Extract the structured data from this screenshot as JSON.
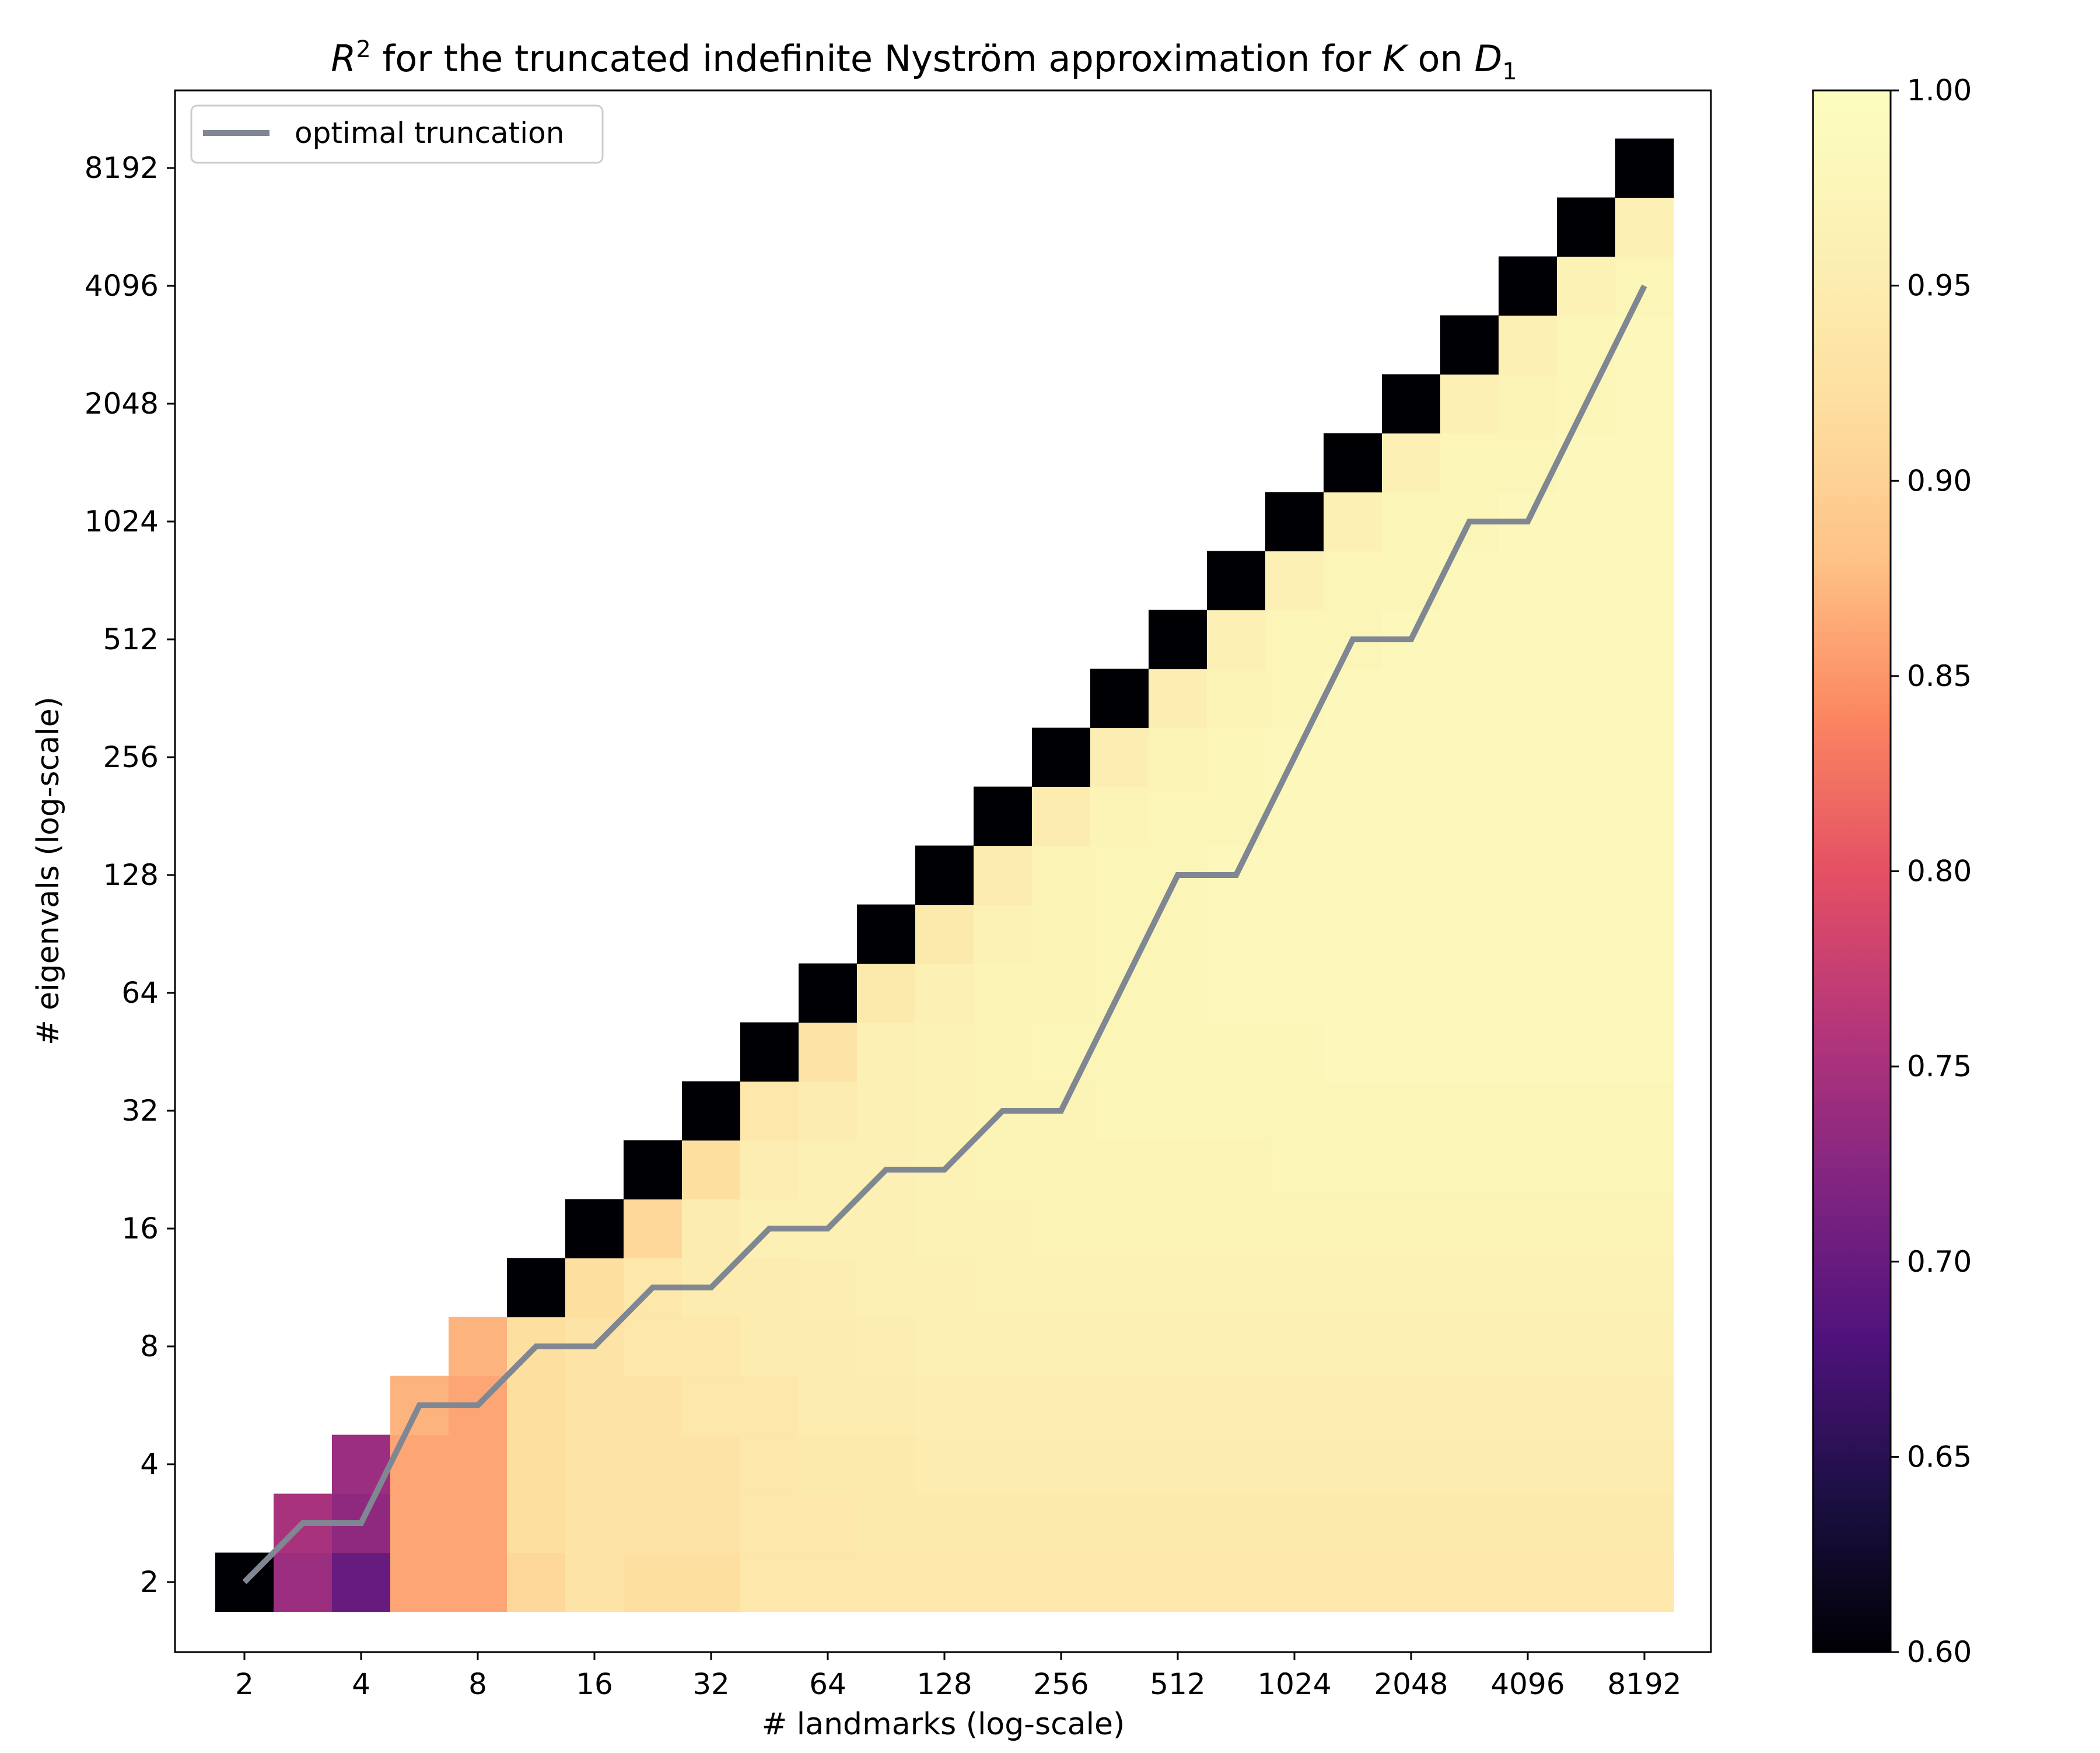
{
  "chart_data": {
    "type": "heatmap",
    "title": {
      "r_label": "R",
      "r_exponent": "2",
      "part1": " for the truncated indefinite Nyström approximation for ",
      "k_label": "K",
      "part2": " on ",
      "d_label": "D",
      "d_subscript": "1"
    },
    "xlabel": "# landmarks (log-scale)",
    "ylabel": "# eigenvals (log-scale)",
    "x_tick_labels": [
      "2",
      "4",
      "8",
      "16",
      "32",
      "64",
      "128",
      "256",
      "512",
      "1024",
      "2048",
      "4096",
      "8192"
    ],
    "y_tick_labels": [
      "2",
      "4",
      "8",
      "16",
      "32",
      "64",
      "128",
      "256",
      "512",
      "1024",
      "2048",
      "4096",
      "8192"
    ],
    "x_scale": "log2",
    "y_scale": "log2",
    "x_range_log2": [
      1,
      13
    ],
    "y_range_log2": [
      1,
      13
    ],
    "grid_resolution_log2": 0.5,
    "legend": {
      "position": "top-left",
      "entries": [
        "optimal truncation"
      ]
    },
    "colorbar": {
      "colormap": "magma",
      "range": [
        0.6,
        1.0
      ],
      "tick_labels": [
        "0.60",
        "0.65",
        "0.70",
        "0.75",
        "0.80",
        "0.85",
        "0.90",
        "0.95",
        "1.00"
      ]
    },
    "line_color": "#7f8793",
    "heatmap_rows": [
      {
        "y_log2": 1.0,
        "values": [
          0.6,
          0.74,
          0.7,
          0.86,
          0.86,
          0.91,
          0.93,
          0.92,
          0.92,
          0.94,
          0.94,
          0.94,
          0.94,
          0.94,
          0.94,
          0.94,
          0.94,
          0.94,
          0.94,
          0.94,
          0.94,
          0.94,
          0.94,
          0.94,
          0.94
        ]
      },
      {
        "y_log2": 1.5,
        "values": [
          null,
          0.75,
          0.73,
          0.86,
          0.86,
          0.92,
          0.93,
          0.93,
          0.93,
          0.94,
          0.94,
          0.945,
          0.945,
          0.945,
          0.945,
          0.945,
          0.945,
          0.945,
          0.945,
          0.945,
          0.945,
          0.945,
          0.945,
          0.945,
          0.945
        ]
      },
      {
        "y_log2": 2.0,
        "values": [
          null,
          null,
          0.74,
          0.86,
          0.86,
          0.92,
          0.93,
          0.93,
          0.93,
          0.94,
          0.945,
          0.945,
          0.95,
          0.95,
          0.95,
          0.95,
          0.95,
          0.95,
          0.95,
          0.95,
          0.95,
          0.95,
          0.95,
          0.95,
          0.95
        ]
      },
      {
        "y_log2": 2.5,
        "values": [
          null,
          null,
          null,
          0.87,
          0.86,
          0.92,
          0.93,
          0.93,
          0.94,
          0.94,
          0.95,
          0.95,
          0.955,
          0.955,
          0.955,
          0.955,
          0.955,
          0.955,
          0.955,
          0.955,
          0.955,
          0.955,
          0.955,
          0.955,
          0.955
        ]
      },
      {
        "y_log2": 3.0,
        "values": [
          null,
          null,
          null,
          null,
          0.87,
          0.92,
          0.93,
          0.94,
          0.94,
          0.95,
          0.95,
          0.955,
          0.96,
          0.96,
          0.96,
          0.96,
          0.96,
          0.96,
          0.96,
          0.96,
          0.96,
          0.96,
          0.96,
          0.96,
          0.96
        ]
      },
      {
        "y_log2": 3.5,
        "values": [
          null,
          null,
          null,
          null,
          null,
          0.6,
          0.92,
          0.94,
          0.95,
          0.95,
          0.955,
          0.96,
          0.96,
          0.965,
          0.965,
          0.965,
          0.965,
          0.965,
          0.965,
          0.965,
          0.965,
          0.965,
          0.965,
          0.965,
          0.965
        ]
      },
      {
        "y_log2": 4.0,
        "values": [
          null,
          null,
          null,
          null,
          null,
          null,
          0.6,
          0.91,
          0.95,
          0.96,
          0.96,
          0.96,
          0.965,
          0.965,
          0.97,
          0.97,
          0.97,
          0.97,
          0.97,
          0.97,
          0.97,
          0.97,
          0.97,
          0.97,
          0.97
        ]
      },
      {
        "y_log2": 4.5,
        "values": [
          null,
          null,
          null,
          null,
          null,
          null,
          null,
          0.6,
          0.92,
          0.955,
          0.96,
          0.96,
          0.965,
          0.97,
          0.97,
          0.97,
          0.97,
          0.97,
          0.975,
          0.975,
          0.975,
          0.975,
          0.975,
          0.975,
          0.975
        ]
      },
      {
        "y_log2": 5.0,
        "values": [
          null,
          null,
          null,
          null,
          null,
          null,
          null,
          null,
          0.6,
          0.94,
          0.95,
          0.96,
          0.965,
          0.97,
          0.97,
          0.975,
          0.975,
          0.975,
          0.975,
          0.975,
          0.975,
          0.975,
          0.975,
          0.975,
          0.975
        ]
      },
      {
        "y_log2": 5.5,
        "values": [
          null,
          null,
          null,
          null,
          null,
          null,
          null,
          null,
          null,
          0.6,
          0.93,
          0.96,
          0.965,
          0.97,
          0.975,
          0.975,
          0.975,
          0.975,
          0.975,
          0.98,
          0.98,
          0.98,
          0.98,
          0.98,
          0.98
        ]
      },
      {
        "y_log2": 6.0,
        "values": [
          null,
          null,
          null,
          null,
          null,
          null,
          null,
          null,
          null,
          null,
          0.6,
          0.945,
          0.96,
          0.97,
          0.97,
          0.975,
          0.975,
          0.98,
          0.98,
          0.98,
          0.98,
          0.98,
          0.98,
          0.98,
          0.98
        ]
      },
      {
        "y_log2": 6.5,
        "values": [
          null,
          null,
          null,
          null,
          null,
          null,
          null,
          null,
          null,
          null,
          null,
          0.6,
          0.945,
          0.965,
          0.97,
          0.975,
          0.975,
          0.98,
          0.98,
          0.98,
          0.98,
          0.98,
          0.98,
          0.98,
          0.98
        ]
      },
      {
        "y_log2": 7.0,
        "values": [
          null,
          null,
          null,
          null,
          null,
          null,
          null,
          null,
          null,
          null,
          null,
          null,
          0.6,
          0.95,
          0.97,
          0.975,
          0.975,
          0.98,
          0.98,
          0.98,
          0.98,
          0.98,
          0.98,
          0.98,
          0.98
        ]
      },
      {
        "y_log2": 7.5,
        "values": [
          null,
          null,
          null,
          null,
          null,
          null,
          null,
          null,
          null,
          null,
          null,
          null,
          null,
          0.6,
          0.95,
          0.97,
          0.975,
          0.975,
          0.98,
          0.98,
          0.98,
          0.98,
          0.98,
          0.98,
          0.98
        ]
      },
      {
        "y_log2": 8.0,
        "values": [
          null,
          null,
          null,
          null,
          null,
          null,
          null,
          null,
          null,
          null,
          null,
          null,
          null,
          null,
          0.6,
          0.955,
          0.97,
          0.975,
          0.98,
          0.98,
          0.98,
          0.98,
          0.98,
          0.98,
          0.98
        ]
      },
      {
        "y_log2": 8.5,
        "values": [
          null,
          null,
          null,
          null,
          null,
          null,
          null,
          null,
          null,
          null,
          null,
          null,
          null,
          null,
          null,
          0.6,
          0.955,
          0.97,
          0.975,
          0.98,
          0.98,
          0.98,
          0.98,
          0.98,
          0.98
        ]
      },
      {
        "y_log2": 9.0,
        "values": [
          null,
          null,
          null,
          null,
          null,
          null,
          null,
          null,
          null,
          null,
          null,
          null,
          null,
          null,
          null,
          null,
          0.6,
          0.96,
          0.975,
          0.975,
          0.98,
          0.98,
          0.98,
          0.98,
          0.98
        ]
      },
      {
        "y_log2": 9.5,
        "values": [
          null,
          null,
          null,
          null,
          null,
          null,
          null,
          null,
          null,
          null,
          null,
          null,
          null,
          null,
          null,
          null,
          null,
          0.6,
          0.96,
          0.975,
          0.975,
          0.98,
          0.98,
          0.98,
          0.98
        ]
      },
      {
        "y_log2": 10.0,
        "values": [
          null,
          null,
          null,
          null,
          null,
          null,
          null,
          null,
          null,
          null,
          null,
          null,
          null,
          null,
          null,
          null,
          null,
          null,
          0.6,
          0.96,
          0.975,
          0.975,
          0.98,
          0.98,
          0.98
        ]
      },
      {
        "y_log2": 10.5,
        "values": [
          null,
          null,
          null,
          null,
          null,
          null,
          null,
          null,
          null,
          null,
          null,
          null,
          null,
          null,
          null,
          null,
          null,
          null,
          null,
          0.6,
          0.96,
          0.975,
          0.975,
          0.98,
          0.98
        ]
      },
      {
        "y_log2": 11.0,
        "values": [
          null,
          null,
          null,
          null,
          null,
          null,
          null,
          null,
          null,
          null,
          null,
          null,
          null,
          null,
          null,
          null,
          null,
          null,
          null,
          null,
          0.6,
          0.96,
          0.97,
          0.975,
          0.98
        ]
      },
      {
        "y_log2": 11.5,
        "values": [
          null,
          null,
          null,
          null,
          null,
          null,
          null,
          null,
          null,
          null,
          null,
          null,
          null,
          null,
          null,
          null,
          null,
          null,
          null,
          null,
          null,
          0.6,
          0.96,
          0.975,
          0.98
        ]
      },
      {
        "y_log2": 12.0,
        "values": [
          null,
          null,
          null,
          null,
          null,
          null,
          null,
          null,
          null,
          null,
          null,
          null,
          null,
          null,
          null,
          null,
          null,
          null,
          null,
          null,
          null,
          null,
          0.6,
          0.965,
          0.975
        ]
      },
      {
        "y_log2": 12.5,
        "values": [
          null,
          null,
          null,
          null,
          null,
          null,
          null,
          null,
          null,
          null,
          null,
          null,
          null,
          null,
          null,
          null,
          null,
          null,
          null,
          null,
          null,
          null,
          null,
          0.6,
          0.96
        ]
      },
      {
        "y_log2": 13.0,
        "values": [
          null,
          null,
          null,
          null,
          null,
          null,
          null,
          null,
          null,
          null,
          null,
          null,
          null,
          null,
          null,
          null,
          null,
          null,
          null,
          null,
          null,
          null,
          null,
          null,
          0.6
        ]
      }
    ],
    "series": [
      {
        "name": "optimal truncation",
        "x_log2": [
          1,
          1.5,
          2,
          2.5,
          3,
          3.5,
          4,
          4.5,
          5,
          5.5,
          6,
          6.5,
          7,
          7.5,
          8,
          8.5,
          9,
          9.5,
          10,
          10.5,
          11,
          11.5,
          12,
          12.5,
          13
        ],
        "y_log2": [
          1,
          1.5,
          1.5,
          2.5,
          2.5,
          3,
          3,
          3.5,
          3.5,
          4,
          4,
          4.5,
          4.5,
          5,
          5,
          6,
          7,
          7,
          8,
          9,
          9,
          10,
          10,
          11,
          12
        ]
      }
    ]
  }
}
